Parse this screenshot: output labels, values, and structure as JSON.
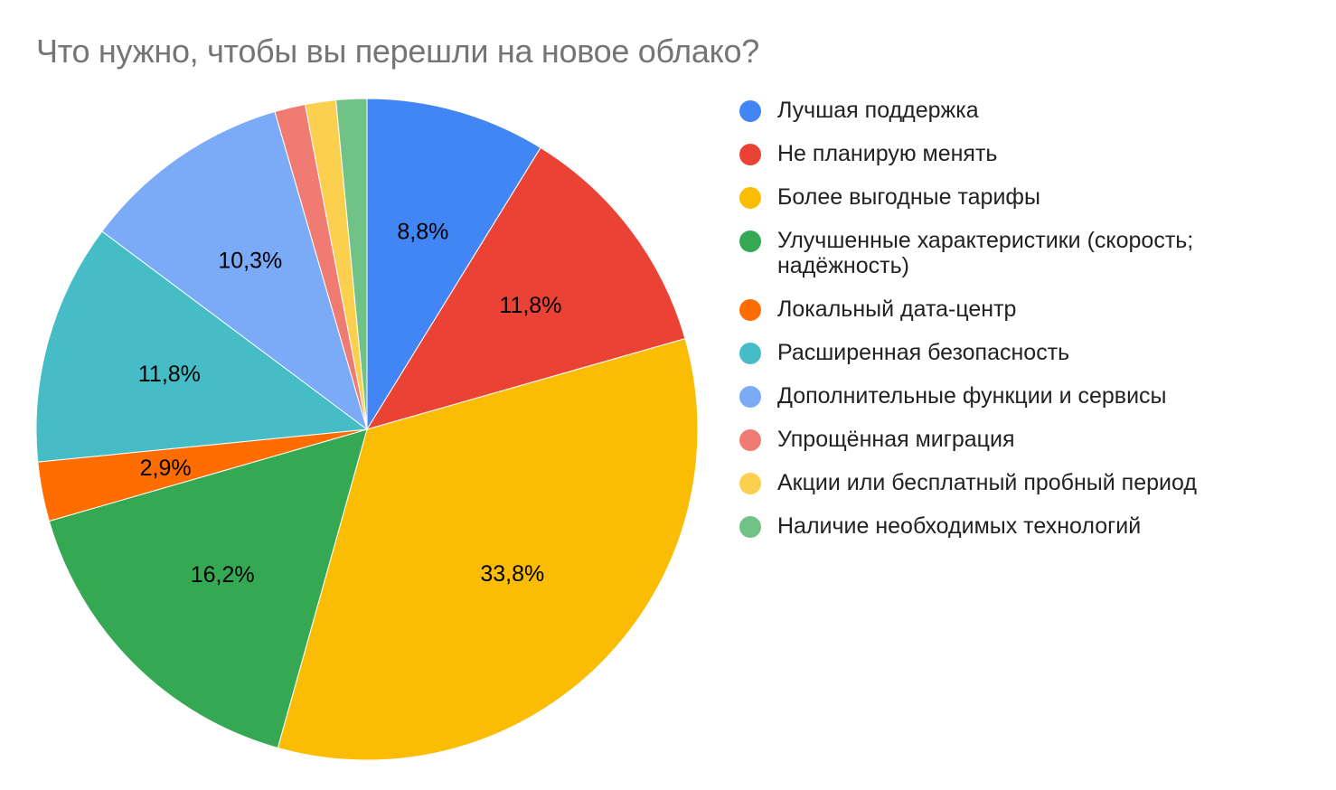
{
  "title": "Что нужно, чтобы вы перешли на новое облако?",
  "chart_data": {
    "type": "pie",
    "title": "Что нужно, чтобы вы перешли на новое облако?",
    "start_angle_deg": 0,
    "direction": "clockwise",
    "legend_position": "right",
    "categories": [
      "Лучшая поддержка",
      "Не планирую менять",
      "Более выгодные тарифы",
      "Улучшенные характеристики (скорость; надёжность)",
      "Локальный дата-центр",
      "Расширенная безопасность",
      "Дополнительные функции и сервисы",
      "Упрощённая миграция",
      "Акции или бесплатный пробный период",
      "Наличие необходимых технологий"
    ],
    "values": [
      8.8,
      11.8,
      33.8,
      16.2,
      2.9,
      11.8,
      10.3,
      1.5,
      1.5,
      1.5
    ],
    "labels": [
      "8,8%",
      "11,8%",
      "33,8%",
      "16,2%",
      "2,9%",
      "11,8%",
      "10,3%",
      "",
      "",
      ""
    ],
    "colors": [
      "#4285f4",
      "#ea4335",
      "#fbbc04",
      "#34a853",
      "#ff6d01",
      "#46bdc6",
      "#7baaf7",
      "#f07b72",
      "#fcd04f",
      "#71c287"
    ]
  },
  "legend": {
    "items": [
      {
        "label": "Лучшая поддержка",
        "color": "#4285f4"
      },
      {
        "label": "Не планирую менять",
        "color": "#ea4335"
      },
      {
        "label": "Более выгодные тарифы",
        "color": "#fbbc04"
      },
      {
        "label": "Улучшенные характеристики (скорость; надёжность)",
        "color": "#34a853"
      },
      {
        "label": "Локальный дата-центр",
        "color": "#ff6d01"
      },
      {
        "label": "Расширенная безопасность",
        "color": "#46bdc6"
      },
      {
        "label": "Дополнительные функции и сервисы",
        "color": "#7baaf7"
      },
      {
        "label": "Упрощённая миграция",
        "color": "#f07b72"
      },
      {
        "label": "Акции или бесплатный пробный период",
        "color": "#fcd04f"
      },
      {
        "label": "Наличие необходимых технологий",
        "color": "#71c287"
      }
    ]
  }
}
